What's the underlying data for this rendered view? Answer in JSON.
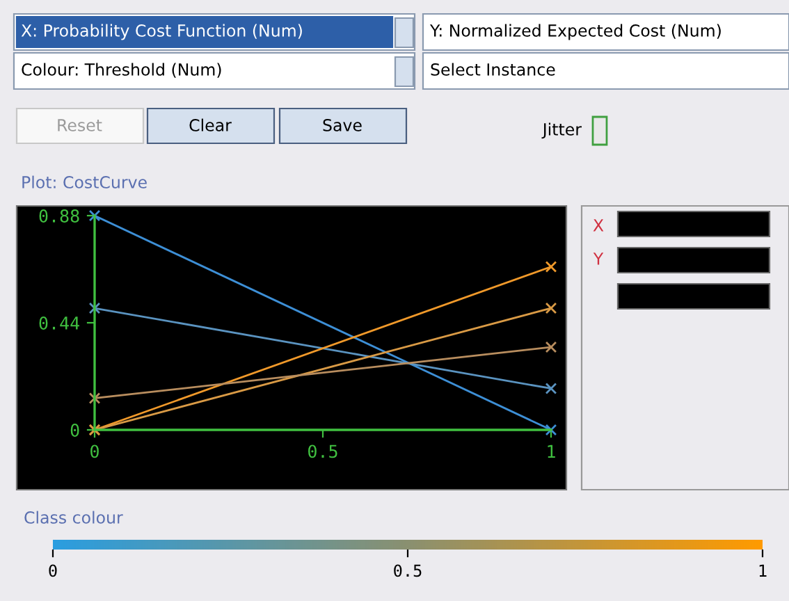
{
  "chart_data": {
    "type": "line",
    "title": "Plot: CostCurve",
    "x": [
      0,
      1
    ],
    "series": [
      {
        "color": "#3d8fd6",
        "values": [
          0.88,
          0
        ]
      },
      {
        "color": "#5a93c0",
        "values": [
          0.5,
          0.17
        ]
      },
      {
        "color": "#f0992a",
        "values": [
          0,
          0.67
        ]
      },
      {
        "color": "#d99a45",
        "values": [
          0,
          0.5
        ]
      },
      {
        "color": "#b88d5e",
        "values": [
          0.13,
          0.34
        ]
      }
    ],
    "xlim": [
      0,
      1
    ],
    "ylim": [
      0,
      0.88
    ],
    "xticks": [
      0,
      0.5,
      1
    ],
    "yticks": [
      0,
      0.44,
      0.88
    ],
    "marker": "cross",
    "grid": false,
    "legend": false,
    "clabel": "Class colour",
    "clim": [
      0,
      1
    ],
    "cticks": [
      0,
      0.5,
      1
    ],
    "annotations": [
      "X: Probability Cost Function (Num)",
      "Y: Normalized Expected Cost (Num)",
      "Colour: Threshold (Num)",
      "Select Instance",
      "Reset",
      "Clear",
      "Save",
      "Jitter",
      "X",
      "Y"
    ]
  }
}
